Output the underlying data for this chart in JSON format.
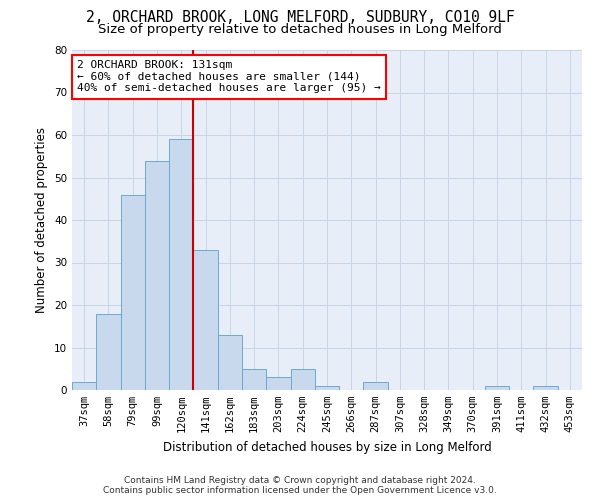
{
  "title_line1": "2, ORCHARD BROOK, LONG MELFORD, SUDBURY, CO10 9LF",
  "title_line2": "Size of property relative to detached houses in Long Melford",
  "xlabel": "Distribution of detached houses by size in Long Melford",
  "ylabel": "Number of detached properties",
  "footer_line1": "Contains HM Land Registry data © Crown copyright and database right 2024.",
  "footer_line2": "Contains public sector information licensed under the Open Government Licence v3.0.",
  "bar_labels": [
    "37sqm",
    "58sqm",
    "79sqm",
    "99sqm",
    "120sqm",
    "141sqm",
    "162sqm",
    "183sqm",
    "203sqm",
    "224sqm",
    "245sqm",
    "266sqm",
    "287sqm",
    "307sqm",
    "328sqm",
    "349sqm",
    "370sqm",
    "391sqm",
    "411sqm",
    "432sqm",
    "453sqm"
  ],
  "bar_values": [
    2,
    18,
    46,
    54,
    59,
    33,
    13,
    5,
    3,
    5,
    1,
    0,
    2,
    0,
    0,
    0,
    0,
    1,
    0,
    1,
    0
  ],
  "bar_color": "#c8d9ee",
  "bar_edge_color": "#6aaad4",
  "property_line_label": "2 ORCHARD BROOK: 131sqm",
  "annotation_line1": "← 60% of detached houses are smaller (144)",
  "annotation_line2": "40% of semi-detached houses are larger (95) →",
  "vline_color": "#cc0000",
  "vline_x_idx": 4,
  "vline_x_offset": 0.524,
  "ylim": [
    0,
    80
  ],
  "yticks": [
    0,
    10,
    20,
    30,
    40,
    50,
    60,
    70,
    80
  ],
  "grid_color": "#c8d4e8",
  "bg_color": "#e8eef8",
  "title_fontsize": 10.5,
  "subtitle_fontsize": 9.5,
  "axis_label_fontsize": 8.5,
  "tick_fontsize": 7.5,
  "footer_fontsize": 6.5,
  "annot_fontsize": 8
}
